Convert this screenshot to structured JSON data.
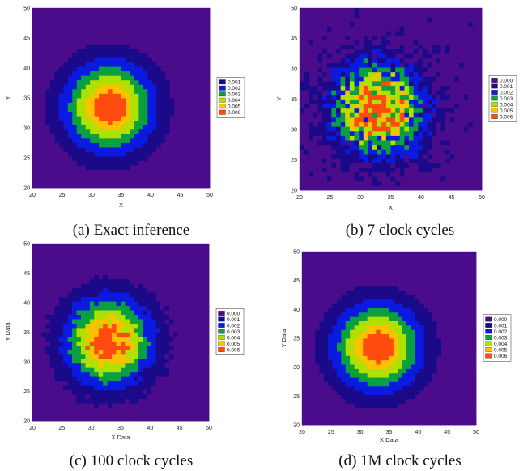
{
  "colors": {
    "background": "#4b0c8c",
    "scale": [
      "#4b0c8c",
      "#1a0a8a",
      "#0a1ae0",
      "#0aa040",
      "#b0e000",
      "#ffc000",
      "#ff4a10"
    ]
  },
  "chart_data": [
    {
      "type": "heatmap",
      "caption": "(a) Exact inference",
      "xlabel": "X",
      "ylabel": "Y",
      "xlim": [
        20,
        50
      ],
      "ylim": [
        20,
        50
      ],
      "x_ticks": [
        "20",
        "25",
        "30",
        "35",
        "40",
        "45",
        "50"
      ],
      "y_ticks": [
        "20",
        "25",
        "30",
        "35",
        "40",
        "45",
        "50"
      ],
      "legend": [
        "0.001",
        "0.002",
        "0.003",
        "0.004",
        "0.005",
        "0.006"
      ],
      "legend_position": "right",
      "center": [
        33,
        33.5
      ],
      "peak": 0.006,
      "noise": 0
    },
    {
      "type": "heatmap",
      "caption": "(b) 7 clock cycles",
      "xlabel": "X",
      "ylabel": "Y",
      "xlim": [
        20,
        50
      ],
      "ylim": [
        20,
        50
      ],
      "x_ticks": [
        "20",
        "25",
        "30",
        "35",
        "40",
        "45",
        "50"
      ],
      "y_ticks": [
        "20",
        "25",
        "30",
        "35",
        "40",
        "45",
        "50"
      ],
      "legend": [
        "0.000",
        "0.001",
        "0.002",
        "0.003",
        "0.004",
        "0.005",
        "0.006"
      ],
      "legend_position": "right",
      "center": [
        33,
        33.5
      ],
      "peak": 0.006,
      "noise": 0.5
    },
    {
      "type": "heatmap",
      "caption": "(c) 100 clock cycles",
      "xlabel": "X Data",
      "ylabel": "Y Data",
      "xlim": [
        20,
        50
      ],
      "ylim": [
        20,
        50
      ],
      "x_ticks": [
        "20",
        "25",
        "30",
        "35",
        "40",
        "45",
        "50"
      ],
      "y_ticks": [
        "20",
        "25",
        "30",
        "35",
        "40",
        "45",
        "50"
      ],
      "legend": [
        "0.000",
        "0.001",
        "0.002",
        "0.003",
        "0.004",
        "0.005",
        "0.006"
      ],
      "legend_position": "right",
      "center": [
        33,
        33.5
      ],
      "peak": 0.006,
      "noise": 0.15
    },
    {
      "type": "heatmap",
      "caption": "(d) 1M clock cycles",
      "xlabel": "X Data",
      "ylabel": "Y Data",
      "xlim": [
        20,
        50
      ],
      "ylim": [
        20,
        50
      ],
      "x_ticks": [
        "20",
        "25",
        "30",
        "35",
        "40",
        "45",
        "50"
      ],
      "y_ticks": [
        "20",
        "25",
        "30",
        "35",
        "40",
        "45",
        "50"
      ],
      "legend": [
        "0.000",
        "0.001",
        "0.002",
        "0.003",
        "0.004",
        "0.005",
        "0.006"
      ],
      "legend_position": "right",
      "center": [
        33,
        33.5
      ],
      "peak": 0.006,
      "noise": 0
    }
  ]
}
